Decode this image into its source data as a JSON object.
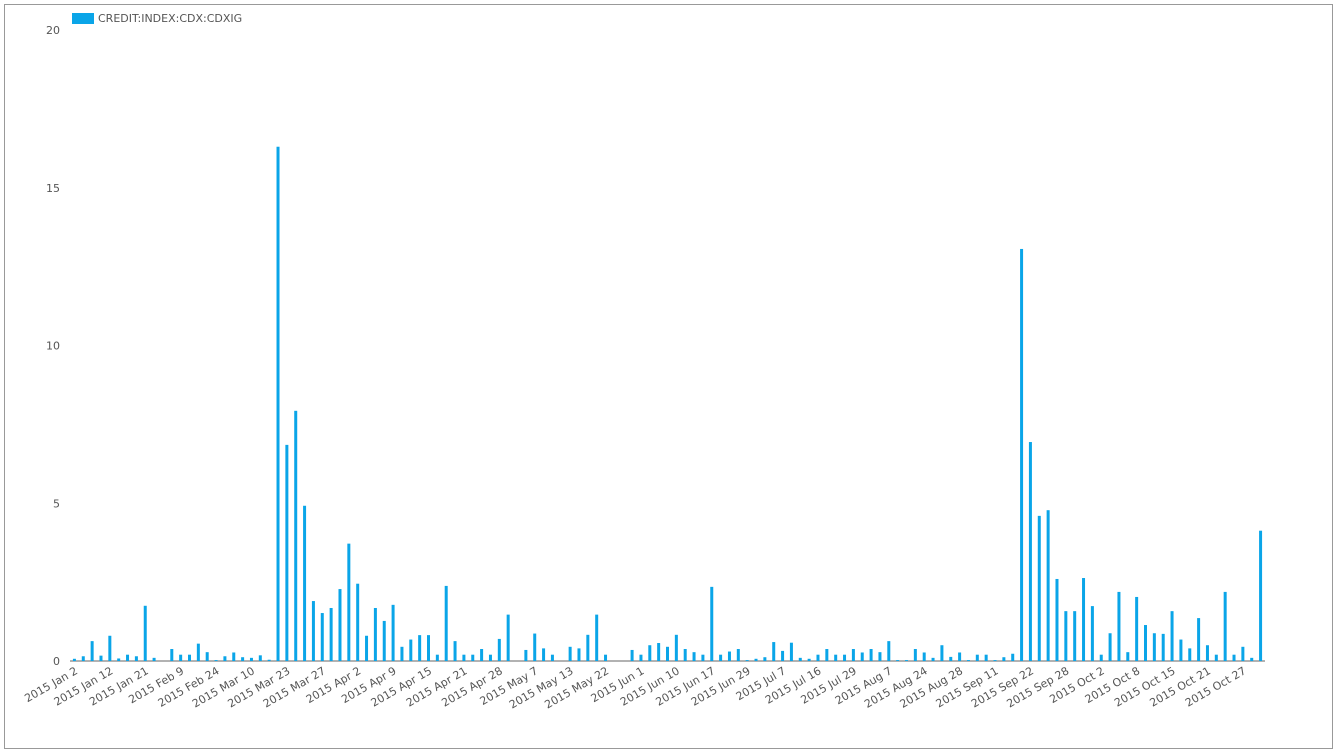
{
  "chart_data": {
    "type": "bar",
    "legend": "top-left",
    "series": [
      {
        "name": "CREDIT:INDEX:CDX:CDXIG",
        "color": "#0aa5e8",
        "values": [
          0.07,
          0.15,
          0.63,
          0.17,
          0.8,
          0.08,
          0.2,
          0.15,
          1.75,
          0.1,
          0,
          0.38,
          0.2,
          0.2,
          0.55,
          0.28,
          0.03,
          0.15,
          0.27,
          0.12,
          0.1,
          0.18,
          0.04,
          16.3,
          6.85,
          7.93,
          4.92,
          1.9,
          1.52,
          1.68,
          2.28,
          3.72,
          2.45,
          0.8,
          1.68,
          1.27,
          1.78,
          0.45,
          0.68,
          0.82,
          0.82,
          0.2,
          2.38,
          0.63,
          0.2,
          0.2,
          0.38,
          0.2,
          0.7,
          1.47,
          0,
          0.35,
          0.87,
          0.4,
          0.2,
          0,
          0.45,
          0.4,
          0.83,
          1.47,
          0.2,
          0,
          0,
          0.35,
          0.2,
          0.5,
          0.57,
          0.45,
          0.83,
          0.38,
          0.28,
          0.2,
          2.35,
          0.2,
          0.3,
          0.38,
          0.03,
          0.07,
          0.12,
          0.6,
          0.32,
          0.58,
          0.1,
          0.07,
          0.2,
          0.38,
          0.2,
          0.2,
          0.38,
          0.27,
          0.38,
          0.28,
          0.63,
          0.03,
          0.03,
          0.38,
          0.27,
          0.1,
          0.5,
          0.13,
          0.27,
          0.03,
          0.2,
          0.2,
          0.03,
          0.12,
          0.23,
          13.06,
          6.94,
          4.6,
          4.78,
          2.6,
          1.58,
          1.58,
          2.63,
          1.74,
          0.2,
          0.88,
          2.19,
          0.28,
          2.03,
          1.14,
          0.88,
          0.86,
          1.58,
          0.68,
          0.4,
          1.36,
          0.5,
          0.2,
          2.19,
          0.2,
          0.45,
          0.1,
          4.13
        ]
      }
    ],
    "categories": [
      "2015 Jan 2",
      null,
      null,
      null,
      "2015 Jan 12",
      null,
      null,
      null,
      "2015 Jan 21",
      null,
      null,
      null,
      "2015 Feb 9",
      null,
      null,
      null,
      "2015 Feb 24",
      null,
      null,
      null,
      "2015 Mar 10",
      null,
      null,
      null,
      "2015 Mar 23",
      null,
      null,
      null,
      "2015 Mar 27",
      null,
      null,
      null,
      "2015 Apr 2",
      null,
      null,
      null,
      "2015 Apr 9",
      null,
      null,
      null,
      "2015 Apr 15",
      null,
      null,
      null,
      "2015 Apr 21",
      null,
      null,
      null,
      "2015 Apr 28",
      null,
      null,
      null,
      "2015 May 7",
      null,
      null,
      null,
      "2015 May 13",
      null,
      null,
      null,
      "2015 May 22",
      null,
      null,
      null,
      "2015 Jun 1",
      null,
      null,
      null,
      "2015 Jun 10",
      null,
      null,
      null,
      "2015 Jun 17",
      null,
      null,
      null,
      "2015 Jun 29",
      null,
      null,
      null,
      "2015 Jul 7",
      null,
      null,
      null,
      "2015 Jul 16",
      null,
      null,
      null,
      "2015 Jul 29",
      null,
      null,
      null,
      "2015 Aug 7",
      null,
      null,
      null,
      "2015 Aug 24",
      null,
      null,
      null,
      "2015 Aug 28",
      null,
      null,
      null,
      "2015 Sep 11",
      null,
      null,
      null,
      "2015 Sep 22",
      null,
      null,
      null,
      "2015 Sep 28",
      null,
      null,
      null,
      "2015 Oct 2",
      null,
      null,
      null,
      "2015 Oct 8",
      null,
      null,
      null,
      "2015 Oct 15",
      null,
      null,
      null,
      "2015 Oct 21",
      null,
      null,
      null,
      "2015 Oct 27",
      null,
      null
    ],
    "ylim": [
      0,
      20
    ],
    "yticks": [
      0,
      5,
      10,
      15,
      20
    ],
    "grid": false
  }
}
